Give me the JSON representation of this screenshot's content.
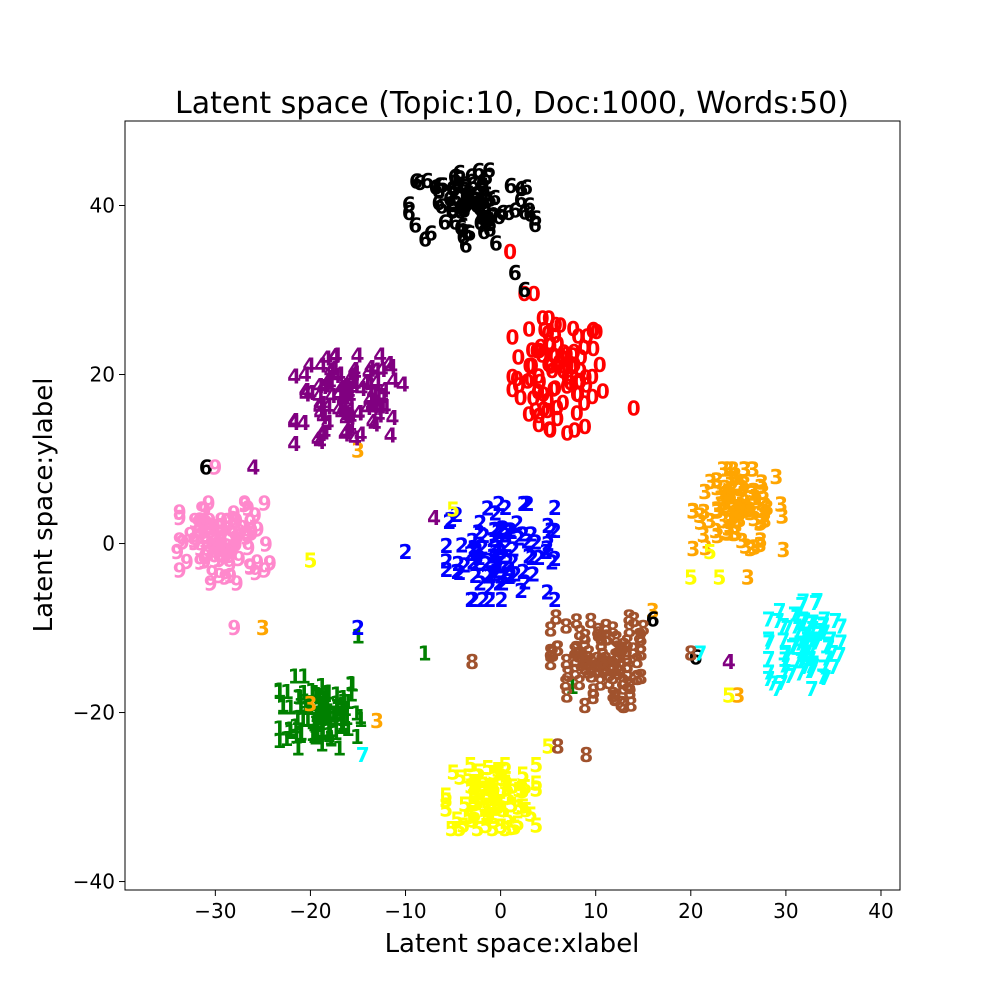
{
  "chart_data": {
    "type": "scatter",
    "title": "Latent space (Topic:10, Doc:1000, Words:50)",
    "xlabel": "Latent space:xlabel",
    "ylabel": "Latent space:ylabel",
    "xlim": [
      -39.5,
      42
    ],
    "ylim": [
      -41,
      50
    ],
    "xticks": [
      -30,
      -20,
      -10,
      0,
      10,
      20,
      30,
      40
    ],
    "yticks": [
      -40,
      -20,
      0,
      20,
      40
    ],
    "xtick_labels": [
      "−30",
      "−20",
      "−10",
      "0",
      "10",
      "20",
      "30",
      "40"
    ],
    "ytick_labels": [
      "−40",
      "−20",
      "0",
      "20",
      "40"
    ],
    "grid": false,
    "legend": "none",
    "marker": "digit label of topic",
    "series": [
      {
        "label": "0",
        "color": "#ff0000",
        "center": [
          6,
          20
        ],
        "spread": [
          5,
          7
        ],
        "count": 90,
        "extra": [
          [
            1,
            34.5
          ],
          [
            2.5,
            29.5
          ],
          [
            3.5,
            29.5
          ],
          [
            4,
            14
          ],
          [
            7,
            13
          ],
          [
            14,
            16
          ]
        ]
      },
      {
        "label": "1",
        "color": "#008000",
        "center": [
          -19,
          -20
        ],
        "spread": [
          4.5,
          4.5
        ],
        "count": 100,
        "extra": [
          [
            -8,
            -13
          ],
          [
            -15,
            -11
          ],
          [
            7.5,
            -17
          ]
        ]
      },
      {
        "label": "2",
        "color": "#0000ff",
        "center": [
          0,
          -1
        ],
        "spread": [
          6,
          6
        ],
        "count": 100,
        "extra": [
          [
            -10,
            -1
          ],
          [
            -15,
            -10
          ]
        ]
      },
      {
        "label": "3",
        "color": "#ffa500",
        "center": [
          25,
          4
        ],
        "spread": [
          5,
          5
        ],
        "count": 95,
        "extra": [
          [
            -15,
            11
          ],
          [
            -25,
            -10
          ],
          [
            -20,
            -19
          ],
          [
            -13,
            -21
          ],
          [
            26,
            -4
          ],
          [
            16,
            -8
          ],
          [
            25,
            -18
          ]
        ]
      },
      {
        "label": "4",
        "color": "#800080",
        "center": [
          -16,
          17
        ],
        "spread": [
          6,
          5.5
        ],
        "count": 95,
        "extra": [
          [
            -26,
            9
          ],
          [
            -7,
            3
          ],
          [
            24,
            -14
          ],
          [
            -19,
            12
          ]
        ]
      },
      {
        "label": "5",
        "color": "#ffff00",
        "center": [
          -1,
          -30
        ],
        "spread": [
          5,
          4
        ],
        "count": 95,
        "extra": [
          [
            -20,
            -2
          ],
          [
            -5,
            4
          ],
          [
            20,
            -4
          ],
          [
            22,
            -1
          ],
          [
            23,
            -4
          ],
          [
            5,
            -24
          ],
          [
            24,
            -18
          ]
        ]
      },
      {
        "label": "6",
        "color": "#000000",
        "center": [
          -3,
          40
        ],
        "spread": [
          7,
          5
        ],
        "count": 90,
        "extra": [
          [
            1.5,
            32
          ],
          [
            2.5,
            30
          ],
          [
            -31,
            9
          ],
          [
            20.5,
            -13.5
          ],
          [
            16,
            -9
          ]
        ]
      },
      {
        "label": "7",
        "color": "#00ffff",
        "center": [
          32,
          -12
        ],
        "spread": [
          4,
          5.5
        ],
        "count": 90,
        "extra": [
          [
            -14.5,
            -25
          ],
          [
            21,
            -13
          ]
        ]
      },
      {
        "label": "8",
        "color": "#a0522d",
        "center": [
          10,
          -14
        ],
        "spread": [
          5,
          5.5
        ],
        "count": 95,
        "extra": [
          [
            -3,
            -14
          ],
          [
            6,
            -24
          ],
          [
            9,
            -25
          ],
          [
            15,
            -10
          ],
          [
            20,
            -13
          ]
        ]
      },
      {
        "label": "9",
        "color": "#ff88cc",
        "center": [
          -29,
          0
        ],
        "spread": [
          5,
          5
        ],
        "count": 95,
        "extra": [
          [
            -28,
            -10
          ],
          [
            -30,
            9
          ],
          [
            -34,
            -1
          ]
        ]
      }
    ]
  }
}
